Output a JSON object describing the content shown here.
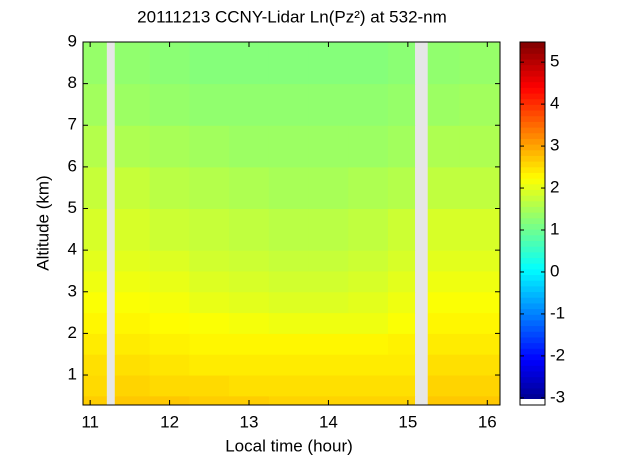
{
  "chart_data": {
    "type": "heatmap",
    "title": "20111213 CCNY-Lidar Ln(Pz²) at 532-nm",
    "x_label": "Local time (hour)",
    "y_label": "Altitude (km)",
    "colormap": "jet",
    "missing_color": "#e6e6e6",
    "x": [
      10.91,
      11.21,
      11.31,
      11.75,
      12.25,
      12.75,
      13.25,
      13.75,
      14.25,
      14.75,
      15.09,
      15.25,
      15.65,
      16.16
    ],
    "y": [
      0.28,
      0.5,
      1,
      1.5,
      2,
      2.5,
      3,
      3.5,
      4,
      5,
      6,
      7,
      8,
      9
    ],
    "z": [
      [
        2.65,
        null,
        2.7,
        2.7,
        2.65,
        2.65,
        2.6,
        2.6,
        2.6,
        2.6,
        null,
        2.7,
        2.7
      ],
      [
        2.55,
        null,
        2.6,
        2.55,
        2.55,
        2.5,
        2.5,
        2.5,
        2.5,
        2.5,
        null,
        2.6,
        2.6
      ],
      [
        2.5,
        null,
        2.5,
        2.45,
        2.4,
        2.4,
        2.4,
        2.4,
        2.4,
        2.4,
        null,
        2.5,
        2.5
      ],
      [
        2.4,
        null,
        2.4,
        2.35,
        2.3,
        2.3,
        2.3,
        2.3,
        2.3,
        2.35,
        null,
        2.4,
        2.4
      ],
      [
        2.3,
        null,
        2.3,
        2.25,
        2.2,
        2.15,
        2.1,
        2.1,
        2.1,
        2.2,
        null,
        2.3,
        2.3
      ],
      [
        2.2,
        null,
        2.2,
        2.15,
        2.05,
        2.0,
        1.95,
        1.95,
        2.0,
        2.1,
        null,
        2.2,
        2.2
      ],
      [
        2.1,
        null,
        2.1,
        2.05,
        1.95,
        1.9,
        1.85,
        1.85,
        1.9,
        2.0,
        null,
        2.1,
        2.1
      ],
      [
        2.0,
        null,
        2.0,
        1.95,
        1.85,
        1.8,
        1.75,
        1.75,
        1.8,
        1.9,
        null,
        2.0,
        2.0
      ],
      [
        1.9,
        null,
        1.9,
        1.8,
        1.75,
        1.7,
        1.65,
        1.65,
        1.7,
        1.8,
        null,
        1.9,
        1.9
      ],
      [
        1.75,
        null,
        1.75,
        1.65,
        1.6,
        1.55,
        1.5,
        1.5,
        1.55,
        1.6,
        null,
        1.7,
        1.7
      ],
      [
        1.6,
        null,
        1.55,
        1.5,
        1.45,
        1.4,
        1.4,
        1.4,
        1.4,
        1.45,
        null,
        1.55,
        1.55
      ],
      [
        1.45,
        null,
        1.4,
        1.35,
        1.3,
        1.3,
        1.3,
        1.3,
        1.3,
        1.35,
        null,
        1.4,
        1.45
      ],
      [
        1.35,
        null,
        1.3,
        1.25,
        1.2,
        1.2,
        1.2,
        1.2,
        1.2,
        1.25,
        null,
        1.3,
        1.35
      ]
    ],
    "xlim": [
      10.91,
      16.16
    ],
    "ylim": [
      0.28,
      9
    ],
    "xticks": [
      11,
      12,
      13,
      14,
      15,
      16
    ],
    "yticks": [
      1,
      2,
      3,
      4,
      5,
      6,
      7,
      8,
      9
    ],
    "clim": [
      -3.17,
      5.48
    ],
    "cticks": [
      -3,
      -2,
      -1,
      0,
      1,
      2,
      3,
      4,
      5
    ]
  }
}
